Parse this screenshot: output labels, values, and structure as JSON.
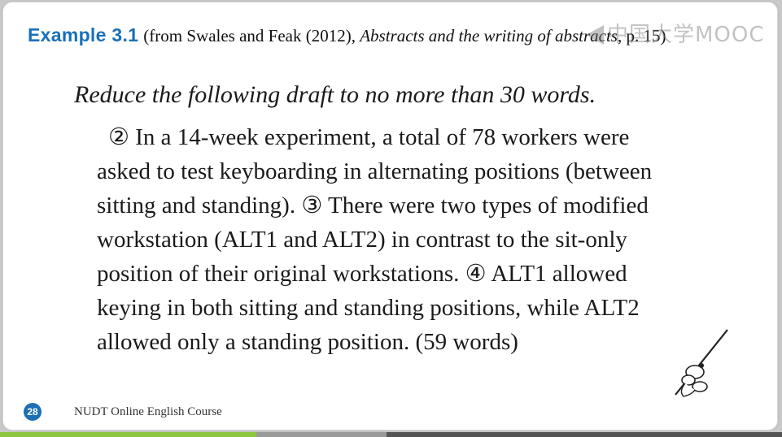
{
  "header": {
    "example_label": "Example 3.1",
    "source_prefix": "(from Swales and Feak (2012),",
    "source_book": "Abstracts and the writing of abstracts",
    "source_suffix": ", p. 15)"
  },
  "watermark": {
    "text": "中国大学MOOC",
    "icon": "mooc-logo-icon"
  },
  "instruction": "Reduce the following draft to no more than 30 words.",
  "body_lines": [
    "② In a 14-week experiment, a total of 78 workers were",
    "asked to test keyboarding in alternating positions (between",
    "sitting and standing). ③ There were two types of modified",
    "workstation (ALT1 and ALT2) in contrast to the sit-only",
    "position of their original workstations. ④ ALT1 allowed",
    "keying in both sitting and standing positions, while ALT2",
    "allowed only a standing position. (59 words)"
  ],
  "footer": {
    "slide_number": "28",
    "course": "NUDT Online English Course"
  },
  "colors": {
    "accent": "#1a6fb8",
    "bar_green": "#8dc63f",
    "bar_gray": "#9a9a9a",
    "bar_dark": "#555555"
  },
  "decor": {
    "icon": "pen-figure-icon"
  }
}
